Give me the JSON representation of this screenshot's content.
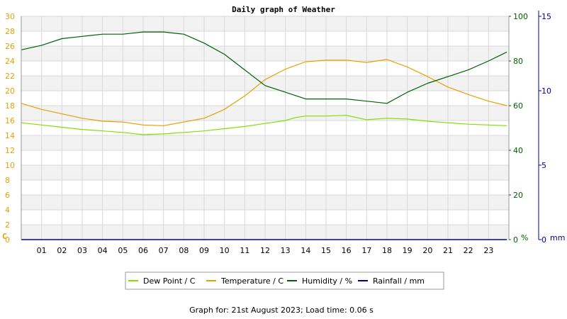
{
  "chart_data": {
    "type": "line",
    "title": "Daily graph of Weather",
    "footer": "Graph for: 21st August 2023; Load time: 0.06 s",
    "x": {
      "tick_labels": [
        "01",
        "02",
        "03",
        "04",
        "05",
        "06",
        "07",
        "08",
        "09",
        "10",
        "11",
        "12",
        "13",
        "14",
        "15",
        "16",
        "17",
        "18",
        "19",
        "20",
        "21",
        "22",
        "23"
      ],
      "range": [
        0,
        24
      ]
    },
    "axes": {
      "left": {
        "unit": "C",
        "range": [
          0,
          30
        ],
        "ticks": [
          0,
          2,
          4,
          6,
          8,
          10,
          12,
          14,
          16,
          18,
          20,
          22,
          24,
          26,
          28,
          30
        ],
        "color": "#e8a000"
      },
      "right1": {
        "unit": "%",
        "range": [
          0,
          100
        ],
        "ticks": [
          0,
          20,
          40,
          60,
          80,
          100
        ],
        "color": "#006000"
      },
      "right2": {
        "unit": "mm",
        "range": [
          0,
          15
        ],
        "ticks": [
          0,
          5,
          10,
          15
        ],
        "color": "#0000a0"
      }
    },
    "grid": true,
    "legend_position": "bottom",
    "series": [
      {
        "name": "Dew Point / C",
        "axis": "left",
        "color": "#80e000",
        "points": [
          [
            0,
            15.7
          ],
          [
            1,
            15.4
          ],
          [
            2,
            15.1
          ],
          [
            3,
            14.8
          ],
          [
            4,
            14.6
          ],
          [
            5,
            14.4
          ],
          [
            6,
            14.1
          ],
          [
            7,
            14.2
          ],
          [
            8,
            14.4
          ],
          [
            9,
            14.6
          ],
          [
            10,
            14.9
          ],
          [
            11,
            15.2
          ],
          [
            12,
            15.6
          ],
          [
            13,
            16.0
          ],
          [
            13.5,
            16.4
          ],
          [
            14,
            16.6
          ],
          [
            15,
            16.6
          ],
          [
            16,
            16.7
          ],
          [
            17,
            16.1
          ],
          [
            18,
            16.3
          ],
          [
            19,
            16.2
          ],
          [
            20,
            15.9
          ],
          [
            21,
            15.7
          ],
          [
            22,
            15.5
          ],
          [
            23,
            15.4
          ],
          [
            23.9,
            15.3
          ]
        ]
      },
      {
        "name": "Temperature / C",
        "axis": "left",
        "color": "#e8a000",
        "points": [
          [
            0,
            18.3
          ],
          [
            1,
            17.5
          ],
          [
            2,
            16.9
          ],
          [
            3,
            16.3
          ],
          [
            4,
            15.9
          ],
          [
            5,
            15.8
          ],
          [
            6,
            15.4
          ],
          [
            7,
            15.3
          ],
          [
            8,
            15.8
          ],
          [
            9,
            16.3
          ],
          [
            10,
            17.5
          ],
          [
            11,
            19.3
          ],
          [
            12,
            21.5
          ],
          [
            13,
            22.9
          ],
          [
            14,
            23.9
          ],
          [
            15,
            24.1
          ],
          [
            16,
            24.1
          ],
          [
            17,
            23.8
          ],
          [
            18,
            24.2
          ],
          [
            19,
            23.2
          ],
          [
            20,
            21.9
          ],
          [
            21,
            20.5
          ],
          [
            22,
            19.5
          ],
          [
            23,
            18.6
          ],
          [
            23.9,
            18.0
          ]
        ]
      },
      {
        "name": "Humidity / %",
        "axis": "right1",
        "color": "#006000",
        "points": [
          [
            0,
            85
          ],
          [
            1,
            87
          ],
          [
            2,
            90
          ],
          [
            3,
            91
          ],
          [
            4,
            92
          ],
          [
            5,
            92
          ],
          [
            6,
            93
          ],
          [
            7,
            93
          ],
          [
            8,
            92
          ],
          [
            9,
            88
          ],
          [
            10,
            83
          ],
          [
            11,
            76
          ],
          [
            12,
            69
          ],
          [
            13,
            66
          ],
          [
            14,
            63
          ],
          [
            15,
            63
          ],
          [
            16,
            63
          ],
          [
            17,
            62
          ],
          [
            18,
            61
          ],
          [
            19,
            66
          ],
          [
            20,
            70
          ],
          [
            21,
            73
          ],
          [
            22,
            76
          ],
          [
            23,
            80
          ],
          [
            23.9,
            84
          ]
        ]
      },
      {
        "name": "Rainfall / mm",
        "axis": "right2",
        "color": "#0000a0",
        "points": [
          [
            0,
            0
          ],
          [
            23.9,
            0
          ]
        ]
      }
    ]
  }
}
